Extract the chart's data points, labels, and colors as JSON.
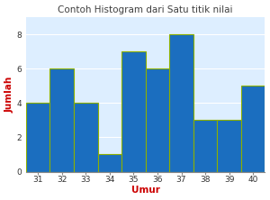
{
  "title": "Contoh Histogram dari Satu titik nilai",
  "xlabel": "Umur",
  "ylabel": "Jumlah",
  "categories": [
    31,
    32,
    33,
    34,
    35,
    36,
    37,
    38,
    39,
    40
  ],
  "values": [
    4,
    6,
    4,
    1,
    7,
    6,
    8,
    3,
    3,
    5
  ],
  "bar_color": "#1B6EBF",
  "bar_edge_color": "#8DB000",
  "bar_edge_width": 0.8,
  "ylim": [
    0,
    9
  ],
  "yticks": [
    0,
    2,
    4,
    6,
    8
  ],
  "axis_label_color": "#CC0000",
  "title_color": "#404040",
  "title_fontsize": 7.5,
  "label_fontsize": 7.5,
  "tick_fontsize": 6.5,
  "background_color": "#FFFFFF",
  "plot_bg_color": "#DDEEFF",
  "grid_color": "#FFFFFF",
  "grid_linewidth": 0.8
}
